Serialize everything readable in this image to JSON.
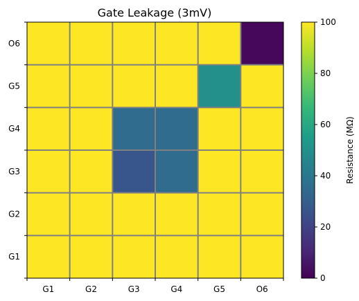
{
  "chart_data": {
    "type": "heatmap",
    "title": "Gate Leakage (3mV)",
    "xlabel": "",
    "ylabel": "",
    "x_categories": [
      "G1",
      "G2",
      "G3",
      "G4",
      "G5",
      "O6"
    ],
    "y_categories": [
      "G1",
      "G2",
      "G3",
      "G4",
      "G5",
      "O6"
    ],
    "grid": true,
    "grid_color": "#808080",
    "values": {
      "O6": [
        100,
        100,
        100,
        100,
        100,
        2
      ],
      "G5": [
        100,
        100,
        100,
        100,
        50,
        100
      ],
      "G4": [
        100,
        100,
        35,
        35,
        100,
        100
      ],
      "G3": [
        100,
        100,
        27,
        35,
        100,
        100
      ],
      "G2": [
        100,
        100,
        100,
        100,
        100,
        100
      ],
      "G1": [
        100,
        100,
        100,
        100,
        100,
        100
      ]
    },
    "colorbar": {
      "label": "Resistance (MΩ)",
      "min": 0,
      "max": 100,
      "ticks": [
        0,
        20,
        40,
        60,
        80,
        100
      ],
      "colormap": "viridis",
      "colormap_stops": [
        "#440154",
        "#482878",
        "#3e4989",
        "#31688e",
        "#26828e",
        "#1f9e89",
        "#35b779",
        "#6ece58",
        "#b5de2b",
        "#fde725"
      ]
    }
  }
}
